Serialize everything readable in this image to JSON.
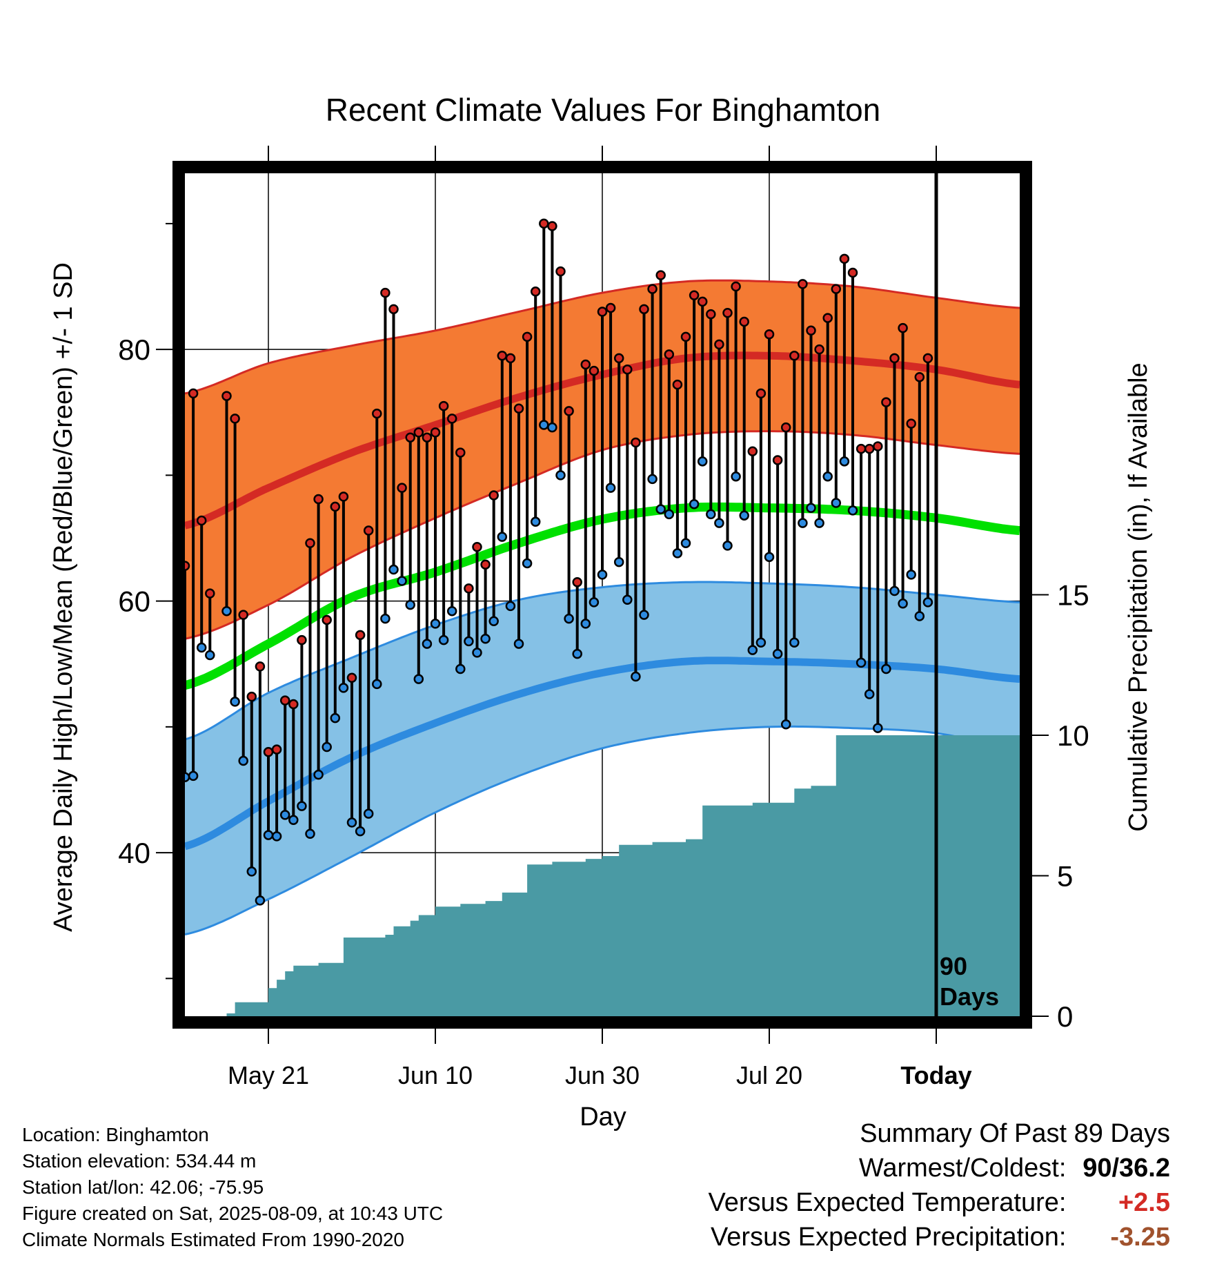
{
  "chart_data": {
    "type": "line",
    "title": "Recent Climate Values For Binghamton",
    "xlabel": "Day",
    "ylabel_left": "Average Daily High/Low/Mean (Red/Blue/Green) +/- 1 SD",
    "ylabel_right": "Cumulative Precipitation (in), If Available",
    "x_start_date": "2025-05-11",
    "x_range_days": [
      0,
      100
    ],
    "ylim_left": [
      27,
      94
    ],
    "ylim_right": [
      0,
      30
    ],
    "yticks_left": [
      40,
      60,
      80
    ],
    "yticks_right": [
      0,
      5,
      10,
      15
    ],
    "xticks": [
      {
        "day": 10,
        "label": "May 21"
      },
      {
        "day": 30,
        "label": "Jun 10"
      },
      {
        "day": 50,
        "label": "Jun 30"
      },
      {
        "day": 70,
        "label": "Jul 20"
      },
      {
        "day": 90,
        "label": "Today"
      }
    ],
    "today_day": 90,
    "today_annotation": [
      "90",
      "Days"
    ],
    "grid": true,
    "normals": {
      "day": [
        0,
        10,
        20,
        30,
        40,
        50,
        60,
        70,
        80,
        90,
        100
      ],
      "high_mean": [
        66.0,
        69.0,
        71.8,
        74.0,
        76.2,
        78.0,
        79.3,
        79.5,
        79.1,
        78.4,
        77.2
      ],
      "high_upper": [
        76.5,
        78.9,
        80.3,
        81.5,
        83.0,
        84.5,
        85.4,
        85.4,
        85.0,
        84.1,
        83.3
      ],
      "high_lower": [
        57.0,
        59.7,
        63.5,
        66.6,
        69.4,
        72.0,
        73.2,
        73.5,
        73.2,
        72.4,
        71.7
      ],
      "mean": [
        53.3,
        56.6,
        60.3,
        62.3,
        64.6,
        66.5,
        67.4,
        67.4,
        67.2,
        66.6,
        65.6
      ],
      "low_mean": [
        40.5,
        44.1,
        47.6,
        50.3,
        52.6,
        54.3,
        55.2,
        55.2,
        55.0,
        54.6,
        53.8
      ],
      "low_upper": [
        49.0,
        52.7,
        55.5,
        58.1,
        60.1,
        61.1,
        61.5,
        61.4,
        61.1,
        60.5,
        59.9
      ],
      "low_lower": [
        33.5,
        36.3,
        39.7,
        43.2,
        46.1,
        48.3,
        49.5,
        50.0,
        49.9,
        49.5,
        48.2
      ]
    },
    "series": [
      {
        "name": "High",
        "color": "#d42a24",
        "values": [
          62.8,
          76.5,
          66.4,
          60.6,
          null,
          76.3,
          74.5,
          58.9,
          52.4,
          54.8,
          48.0,
          48.2,
          52.1,
          51.8,
          56.9,
          64.6,
          68.1,
          58.5,
          67.5,
          68.3,
          53.9,
          57.3,
          65.6,
          74.9,
          84.5,
          83.2,
          69.0,
          73.0,
          73.4,
          73.0,
          73.4,
          75.5,
          74.5,
          71.8,
          61.0,
          64.3,
          62.9,
          68.4,
          79.5,
          79.3,
          75.3,
          81.0,
          84.6,
          90.0,
          89.8,
          86.2,
          75.1,
          61.5,
          78.8,
          78.3,
          83.0,
          83.3,
          79.3,
          78.4,
          72.6,
          83.2,
          84.8,
          85.9,
          79.6,
          77.2,
          81.0,
          84.3,
          83.8,
          82.8,
          80.4,
          82.9,
          85.0,
          82.2,
          71.9,
          76.5,
          81.2,
          71.2,
          73.8,
          79.5,
          85.2,
          81.5,
          80.0,
          82.5,
          84.8,
          87.2,
          86.1,
          72.1,
          72.1,
          72.3,
          75.8,
          79.3,
          81.7,
          74.1,
          77.8,
          79.3
        ]
      },
      {
        "name": "Low",
        "color": "#2e8bdf",
        "values": [
          46.0,
          46.1,
          56.3,
          55.7,
          null,
          59.2,
          52.0,
          47.3,
          38.5,
          36.2,
          41.4,
          41.3,
          43.0,
          42.6,
          43.7,
          41.5,
          46.2,
          48.4,
          50.7,
          53.1,
          42.4,
          41.7,
          43.1,
          53.4,
          58.6,
          62.5,
          61.6,
          59.7,
          53.8,
          56.6,
          58.2,
          56.9,
          59.2,
          54.6,
          56.8,
          55.9,
          57.0,
          58.4,
          65.1,
          59.6,
          56.6,
          63.0,
          66.3,
          74.0,
          73.8,
          70.0,
          58.6,
          55.8,
          58.2,
          59.9,
          62.1,
          69.0,
          63.1,
          60.1,
          54.0,
          58.9,
          69.7,
          67.3,
          66.9,
          63.8,
          64.6,
          67.7,
          71.1,
          66.9,
          66.2,
          64.4,
          69.9,
          66.8,
          56.1,
          56.7,
          63.5,
          55.8,
          50.2,
          56.7,
          66.2,
          67.4,
          66.2,
          69.9,
          67.8,
          71.1,
          67.2,
          55.1,
          52.6,
          49.9,
          54.6,
          60.8,
          59.8,
          62.1,
          58.8,
          59.9
        ]
      }
    ],
    "precipitation": {
      "day": [
        5,
        6,
        7,
        8,
        9,
        10,
        11,
        12,
        13,
        14,
        15,
        16,
        17,
        18,
        19,
        20,
        21,
        22,
        23,
        24,
        25,
        26,
        27,
        28,
        29,
        30,
        31,
        32,
        33,
        34,
        35,
        36,
        37,
        38,
        39,
        40,
        41,
        42,
        43,
        44,
        45,
        46,
        47,
        48,
        49,
        50,
        51,
        52,
        53,
        54,
        55,
        56,
        57,
        58,
        59,
        60,
        61,
        62,
        63,
        64,
        65,
        66,
        67,
        68,
        69,
        70,
        71,
        72,
        73,
        74,
        75,
        76,
        77,
        78,
        79,
        80,
        81,
        82,
        83,
        84,
        85,
        86,
        87,
        88,
        89,
        90,
        100
      ],
      "cumulative": [
        0.1,
        0.5,
        0.5,
        0.5,
        0.5,
        1.0,
        1.3,
        1.6,
        1.8,
        1.8,
        1.8,
        1.9,
        1.9,
        1.9,
        2.8,
        2.8,
        2.8,
        2.8,
        2.8,
        2.9,
        3.2,
        3.2,
        3.4,
        3.6,
        3.6,
        3.9,
        3.9,
        3.9,
        4.0,
        4.0,
        4.0,
        4.1,
        4.1,
        4.4,
        4.4,
        4.4,
        5.4,
        5.4,
        5.4,
        5.5,
        5.5,
        5.5,
        5.5,
        5.6,
        5.6,
        5.7,
        5.7,
        6.1,
        6.1,
        6.1,
        6.1,
        6.2,
        6.2,
        6.2,
        6.2,
        6.3,
        6.3,
        7.5,
        7.5,
        7.5,
        7.5,
        7.5,
        7.5,
        7.6,
        7.6,
        7.6,
        7.6,
        7.6,
        8.1,
        8.1,
        8.2,
        8.2,
        8.2,
        10.0,
        10.0,
        10.0,
        10.0,
        10.0,
        10.0,
        10.0,
        10.0,
        10.0,
        10.0,
        10.0,
        10.0,
        10.0,
        10.0
      ]
    },
    "colors": {
      "high_band": "#f47a33",
      "high_line": "#d42a24",
      "low_band": "#85c1e6",
      "low_line": "#2e8bdf",
      "mean_line": "#00e000",
      "precip_fill": "#4a9aa4"
    }
  },
  "footer": {
    "location": "Location: Binghamton",
    "elevation": "Station elevation: 534.44 m",
    "latlon": "Station lat/lon: 42.06; -75.95",
    "created": "Figure created on Sat, 2025-08-09, at 10:43 UTC",
    "normals": "Climate Normals Estimated From 1990-2020"
  },
  "summary": {
    "heading": "Summary Of Past 89 Days",
    "warmest_label": "Warmest/Coldest:",
    "warmest_value": "90/36.2",
    "temp_label": "Versus Expected Temperature:",
    "temp_value": "+2.5",
    "temp_color": "#d42a24",
    "precip_label": "Versus Expected Precipitation:",
    "precip_value": "-3.25",
    "precip_color": "#a0522d"
  }
}
